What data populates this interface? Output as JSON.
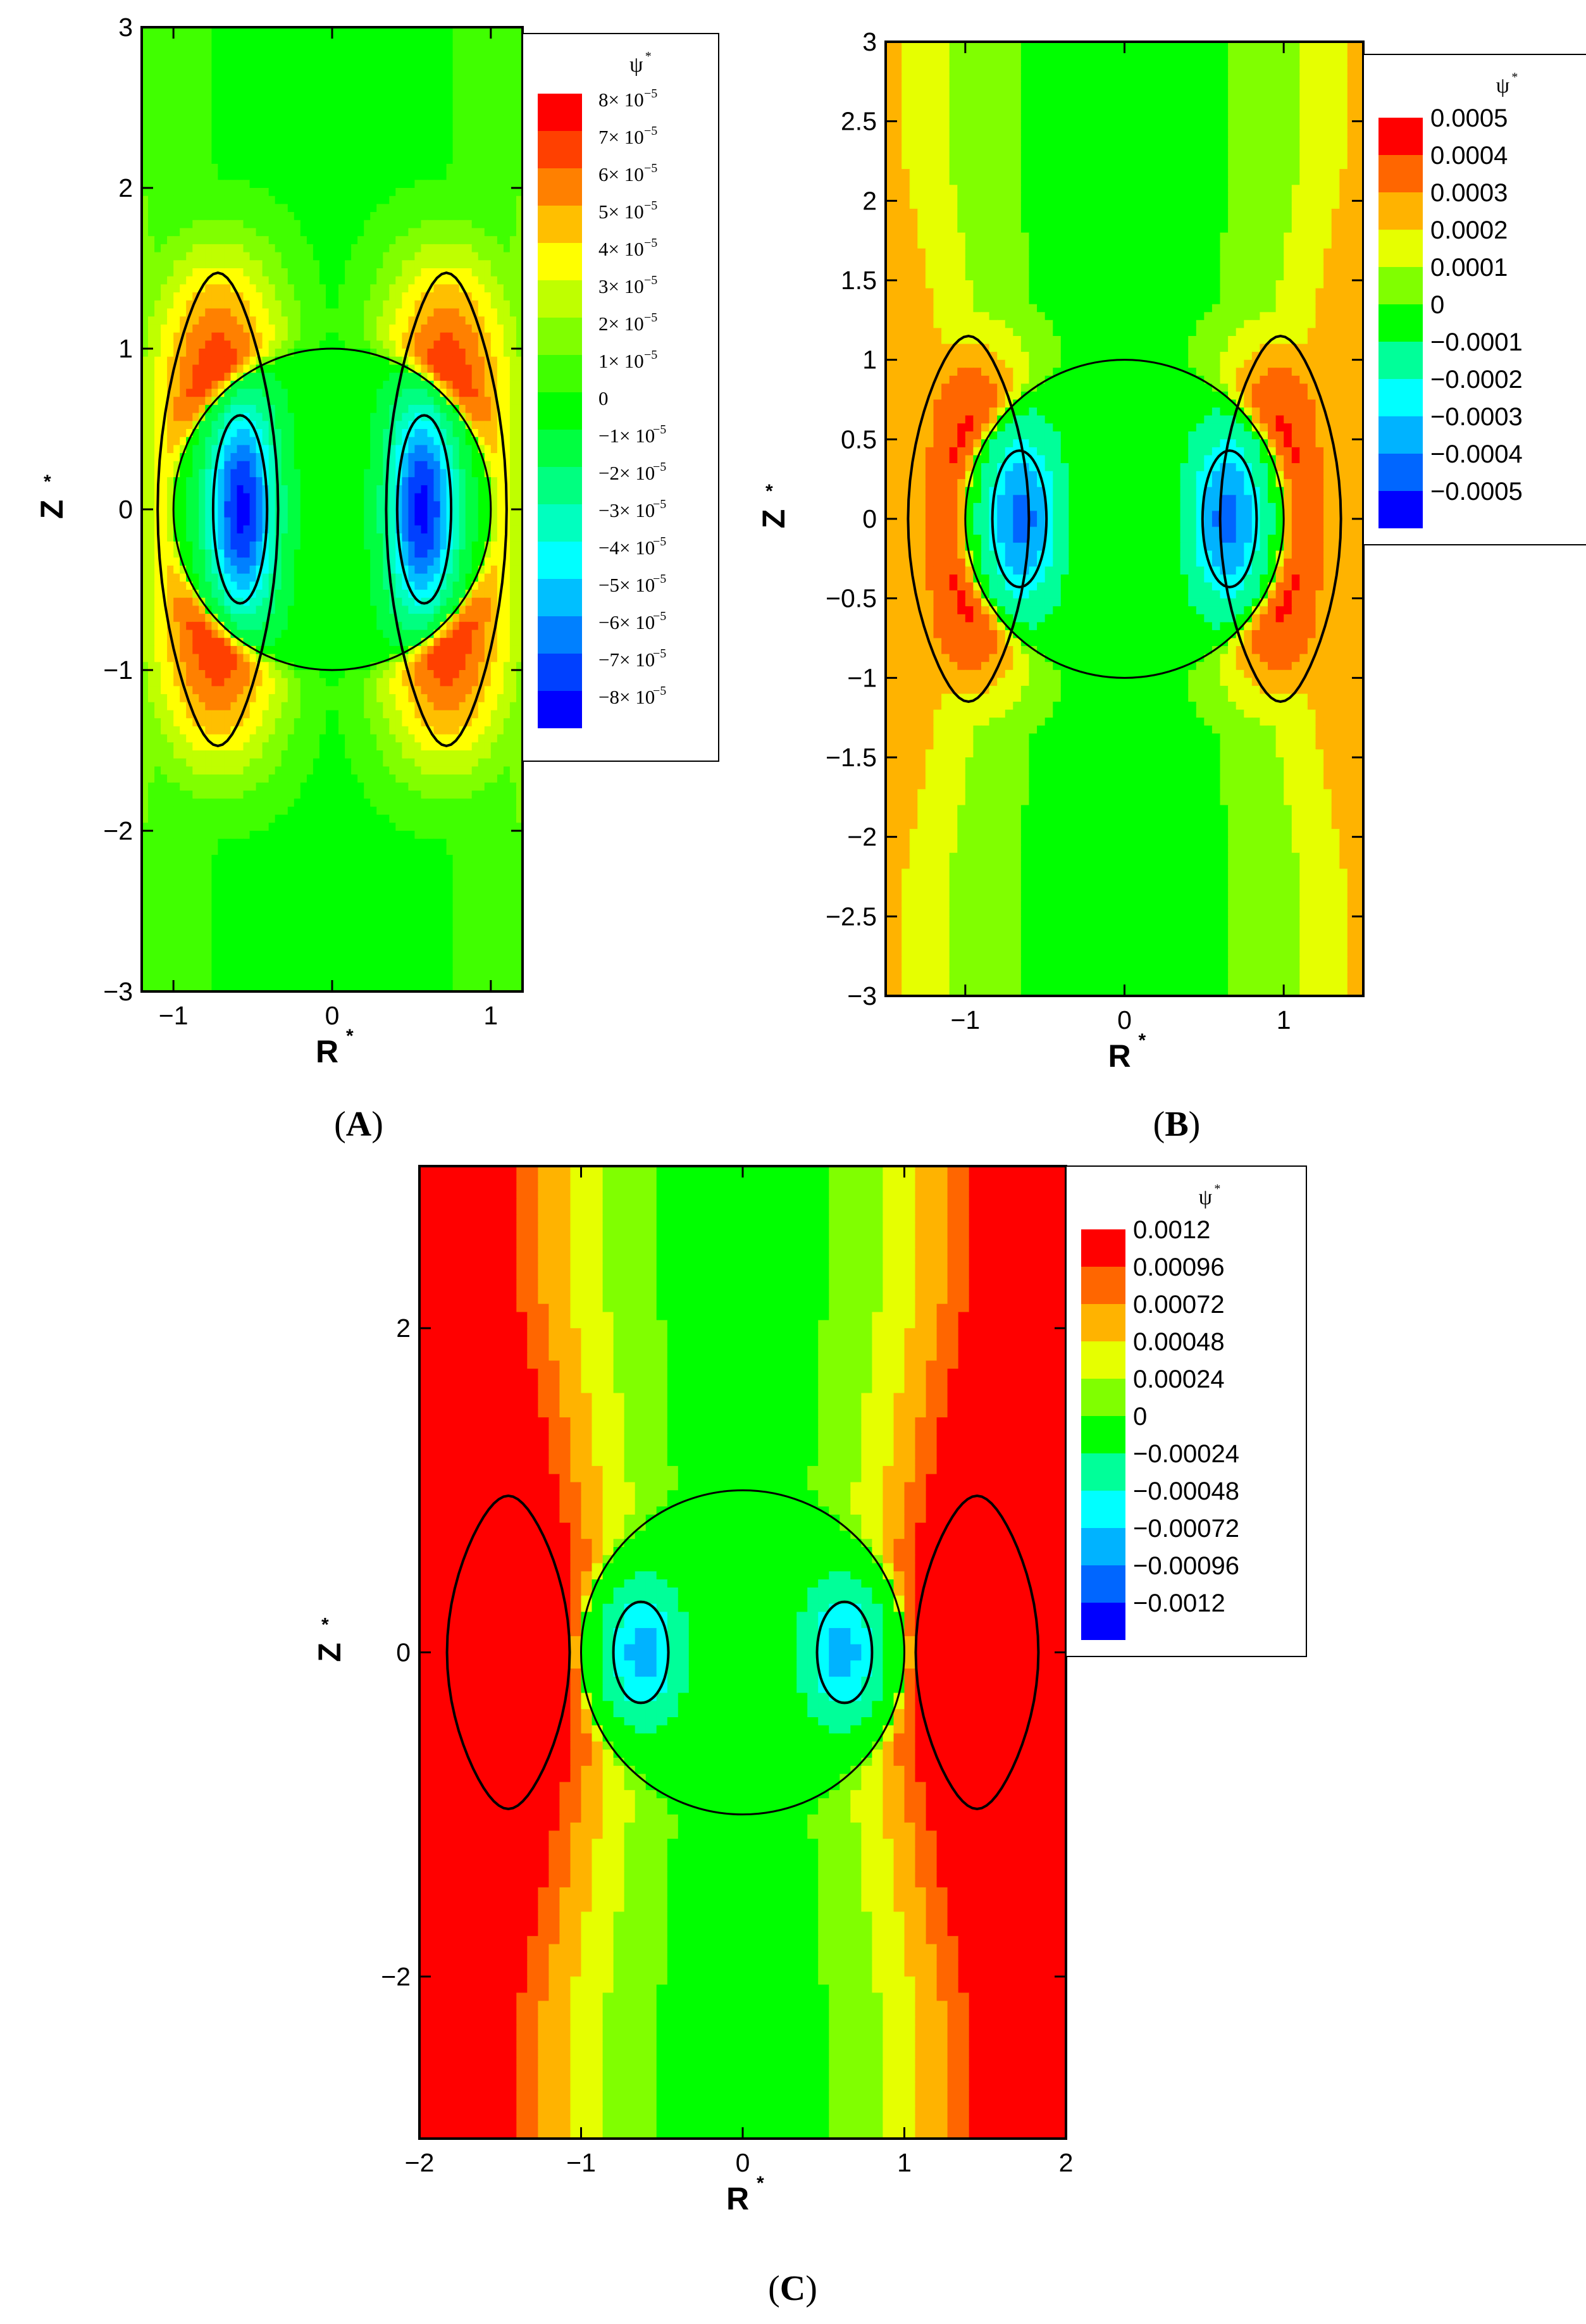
{
  "chart_data": [
    {
      "panel_label": "(A)",
      "type": "heatmap",
      "quantity": "ψ*",
      "xlabel": "R",
      "ylabel": "Z",
      "axis_sup": "*",
      "xlim": [
        -1.2,
        1.2
      ],
      "ylim": [
        -3,
        3
      ],
      "x_ticks": [
        -1,
        0,
        1
      ],
      "y_ticks": [
        -3,
        -2,
        -1,
        0,
        1,
        2,
        3
      ],
      "x_tick_labels": [
        "−1",
        "0",
        "1"
      ],
      "y_tick_labels": [
        "−3",
        "−2",
        "−1",
        "0",
        "1",
        "2",
        "3"
      ],
      "sphere_radius": 1,
      "legend": {
        "title": "ψ",
        "title_sup": "*",
        "style": "sci",
        "levels": [
          {
            "label": "8× 10",
            "exp": "−5",
            "value": 8e-05,
            "color": "#ff0000"
          },
          {
            "label": "7× 10",
            "exp": "−5",
            "value": 7e-05,
            "color": "#ff4000"
          },
          {
            "label": "6× 10",
            "exp": "−5",
            "value": 6e-05,
            "color": "#ff8000"
          },
          {
            "label": "5× 10",
            "exp": "−5",
            "value": 5e-05,
            "color": "#ffbf00"
          },
          {
            "label": "4× 10",
            "exp": "−5",
            "value": 4e-05,
            "color": "#ffff00"
          },
          {
            "label": "3× 10",
            "exp": "−5",
            "value": 3e-05,
            "color": "#bfff00"
          },
          {
            "label": "2× 10",
            "exp": "−5",
            "value": 2e-05,
            "color": "#80ff00"
          },
          {
            "label": "1× 10",
            "exp": "−5",
            "value": 1e-05,
            "color": "#40ff00"
          },
          {
            "label": "0",
            "exp": "",
            "value": 0,
            "color": "#00ff00"
          },
          {
            "label": "−1× 10",
            "exp": "−5",
            "value": -1e-05,
            "color": "#00ff40"
          },
          {
            "label": "−2× 10",
            "exp": "−5",
            "value": -2e-05,
            "color": "#00ff80"
          },
          {
            "label": "−3× 10",
            "exp": "−5",
            "value": -3e-05,
            "color": "#00ffbf"
          },
          {
            "label": "−4× 10",
            "exp": "−5",
            "value": -4e-05,
            "color": "#00ffff"
          },
          {
            "label": "−5× 10",
            "exp": "−5",
            "value": -5e-05,
            "color": "#00bfff"
          },
          {
            "label": "−6× 10",
            "exp": "−5",
            "value": -6e-05,
            "color": "#0080ff"
          },
          {
            "label": "−7× 10",
            "exp": "−5",
            "value": -7e-05,
            "color": "#0040ff"
          },
          {
            "label": "−8× 10",
            "exp": "−5",
            "value": -8e-05,
            "color": "#0000ff"
          }
        ]
      },
      "field": {
        "outer_peak": 8e-05,
        "outer_r": 0.72,
        "outer_z": 1.6,
        "outer_bg": 2e-05,
        "inner_peak": -8e-05,
        "inner_r": 0.58,
        "inner_z": 0.75
      }
    },
    {
      "panel_label": "(B)",
      "type": "heatmap",
      "quantity": "ψ*",
      "xlabel": "R",
      "ylabel": "Z",
      "axis_sup": "*",
      "xlim": [
        -1.5,
        1.5
      ],
      "ylim": [
        -3,
        3
      ],
      "x_ticks": [
        -1,
        0,
        1
      ],
      "y_ticks": [
        -3,
        -2.5,
        -2,
        -1.5,
        -1,
        -0.5,
        0,
        0.5,
        1,
        1.5,
        2,
        2.5,
        3
      ],
      "x_tick_labels": [
        "−1",
        "0",
        "1"
      ],
      "y_tick_labels": [
        "−3",
        "−2.5",
        "−2",
        "−1.5",
        "−1",
        "−0.5",
        "0",
        "0.5",
        "1",
        "1.5",
        "2",
        "2.5",
        "3"
      ],
      "sphere_radius": 1,
      "legend": {
        "title": "ψ",
        "title_sup": "*",
        "style": "plain",
        "levels": [
          {
            "label": "0.0005",
            "value": 0.0005,
            "color": "#ff0000"
          },
          {
            "label": "0.0004",
            "value": 0.0004,
            "color": "#ff6600"
          },
          {
            "label": "0.0003",
            "value": 0.0003,
            "color": "#ffb300"
          },
          {
            "label": "0.0002",
            "value": 0.0002,
            "color": "#e6ff00"
          },
          {
            "label": "0.0001",
            "value": 0.0001,
            "color": "#80ff00"
          },
          {
            "label": "0",
            "value": 0,
            "color": "#00ff00"
          },
          {
            "label": "−0.0001",
            "value": -0.0001,
            "color": "#00ff99"
          },
          {
            "label": "−0.0002",
            "value": -0.0002,
            "color": "#00ffff"
          },
          {
            "label": "−0.0003",
            "value": -0.0003,
            "color": "#00b3ff"
          },
          {
            "label": "−0.0004",
            "value": -0.0004,
            "color": "#0066ff"
          },
          {
            "label": "−0.0005",
            "value": -0.0005,
            "color": "#0000ff"
          }
        ]
      },
      "field": {
        "outer_peak": 0.00048,
        "outer_r": 0.98,
        "outer_z": 1.25,
        "outer_bg": 0.00026,
        "inner_peak": -0.00042,
        "inner_r": 0.66,
        "inner_z": 0.55
      }
    },
    {
      "panel_label": "(C)",
      "type": "heatmap",
      "quantity": "ψ*",
      "xlabel": "R",
      "ylabel": "Z",
      "axis_sup": "*",
      "xlim": [
        -2,
        2
      ],
      "ylim": [
        -3,
        3
      ],
      "x_ticks": [
        -2,
        -1,
        0,
        1,
        2
      ],
      "y_ticks": [
        -2,
        0,
        2
      ],
      "x_tick_labels": [
        "−2",
        "−1",
        "0",
        "1",
        "2"
      ],
      "y_tick_labels": [
        "−2",
        "0",
        "2"
      ],
      "sphere_radius": 1,
      "legend": {
        "title": "ψ",
        "title_sup": "*",
        "style": "plain",
        "levels": [
          {
            "label": "0.0012",
            "value": 0.0012,
            "color": "#ff0000"
          },
          {
            "label": "0.00096",
            "value": 0.00096,
            "color": "#ff6600"
          },
          {
            "label": "0.00072",
            "value": 0.00072,
            "color": "#ffb300"
          },
          {
            "label": "0.00048",
            "value": 0.00048,
            "color": "#e6ff00"
          },
          {
            "label": "0.00024",
            "value": 0.00024,
            "color": "#80ff00"
          },
          {
            "label": "0",
            "value": 0,
            "color": "#00ff00"
          },
          {
            "label": "−0.00024",
            "value": -0.00024,
            "color": "#00ff99"
          },
          {
            "label": "−0.00048",
            "value": -0.00048,
            "color": "#00ffff"
          },
          {
            "label": "−0.00072",
            "value": -0.00072,
            "color": "#00b3ff"
          },
          {
            "label": "−0.00096",
            "value": -0.00096,
            "color": "#0066ff"
          },
          {
            "label": "−0.0012",
            "value": -0.0012,
            "color": "#0000ff"
          }
        ]
      },
      "field": {
        "outer_peak": 0.00125,
        "outer_r": 1.45,
        "outer_z": 1.05,
        "outer_bg": 0.0011,
        "inner_peak": -0.00075,
        "inner_r": 0.63,
        "inner_z": 0.4
      }
    }
  ]
}
